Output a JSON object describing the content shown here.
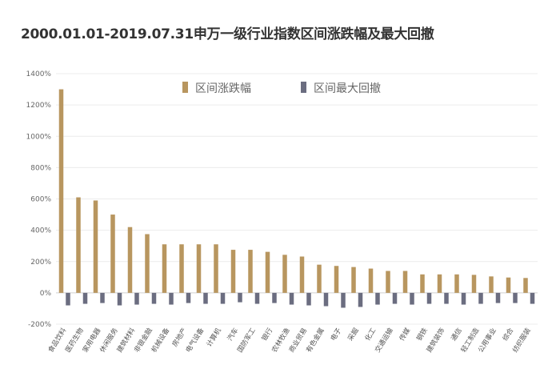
{
  "chart_data": {
    "type": "bar",
    "title": "2000.01.01-2019.07.31申万一级行业指数区间涨跌幅及最大回撤",
    "categories": [
      "食品饮料",
      "医药生物",
      "家用电器",
      "休闲服务",
      "建筑材料",
      "非银金融",
      "机械设备",
      "房地产",
      "电气设备",
      "计算机",
      "汽车",
      "国防军工",
      "银行",
      "农林牧渔",
      "商业贸易",
      "有色金属",
      "电子",
      "采掘",
      "化工",
      "交通运输",
      "传媒",
      "钢铁",
      "建筑装饰",
      "通信",
      "轻工制造",
      "公用事业",
      "综合",
      "纺织服装"
    ],
    "series": [
      {
        "name": "区间涨跌幅",
        "color": "#b8965f",
        "values": [
          1300,
          610,
          590,
          500,
          420,
          375,
          310,
          310,
          310,
          310,
          275,
          275,
          262,
          243,
          232,
          180,
          172,
          165,
          155,
          140,
          140,
          118,
          118,
          118,
          115,
          105,
          98,
          95
        ]
      },
      {
        "name": "区间最大回撤",
        "color": "#6b6d80",
        "values": [
          -80,
          -70,
          -65,
          -80,
          -75,
          -70,
          -75,
          -65,
          -70,
          -70,
          -60,
          -70,
          -65,
          -75,
          -80,
          -85,
          -95,
          -90,
          -75,
          -70,
          -75,
          -70,
          -70,
          -75,
          -70,
          -65,
          -65,
          -70
        ]
      }
    ],
    "yticks": [
      -200,
      0,
      200,
      400,
      600,
      800,
      1000,
      1200,
      1400
    ],
    "ytick_labels": [
      "-200%",
      "0%",
      "200%",
      "400%",
      "600%",
      "800%",
      "1000%",
      "1200%",
      "1400%"
    ],
    "ylim": [
      -200,
      1400
    ],
    "xlabel": "",
    "ylabel": "",
    "grid": true,
    "legend": "top-center"
  }
}
